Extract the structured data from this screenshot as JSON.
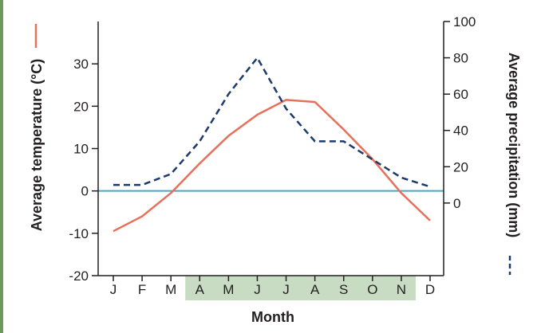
{
  "chart_data": {
    "type": "line",
    "categories": [
      "J",
      "F",
      "M",
      "A",
      "M",
      "J",
      "J",
      "A",
      "S",
      "O",
      "N",
      "D"
    ],
    "highlight_range": [
      "A",
      "N"
    ],
    "highlight_color": "#c8dcc3",
    "xlabel": "Month",
    "ylabel_left": "Average temperature (°C)",
    "ylabel_right": "Average precipitation (mm)",
    "y_left": {
      "min": -20,
      "max": 40,
      "ticks": [
        -20,
        -10,
        0,
        10,
        20,
        30
      ]
    },
    "y_right": {
      "min": -40,
      "max": 100,
      "ticks": [
        0,
        20,
        40,
        60,
        80,
        100
      ]
    },
    "zero_line_color": "#4aa3c8",
    "grid": false,
    "series": [
      {
        "name": "Average temperature (°C)",
        "axis": "left",
        "style": "solid",
        "color": "#e8705a",
        "values": [
          -9.5,
          -6,
          -0.5,
          6.5,
          13,
          18,
          21.5,
          21,
          14.5,
          7.5,
          -0.5,
          -7
        ]
      },
      {
        "name": "Average precipitation (mm)",
        "axis": "right",
        "style": "dashed",
        "color": "#1c3a6b",
        "values": [
          10,
          10,
          16,
          34,
          60,
          80,
          52,
          34,
          34,
          24,
          14,
          9
        ]
      }
    ]
  }
}
